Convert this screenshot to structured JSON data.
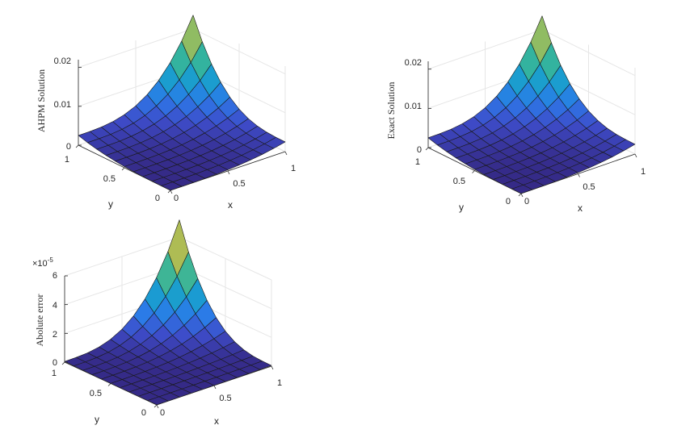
{
  "chart_data": [
    {
      "type": "surface",
      "zlabel": "AHPM Solution",
      "xlabel": "x",
      "ylabel": "y",
      "x_ticks": [
        "0",
        "0.5",
        "1"
      ],
      "y_ticks": [
        "0",
        "0.5",
        "1"
      ],
      "z_ticks": [
        "0",
        "0.01",
        "0.02"
      ],
      "z_exponent": "",
      "xlim": [
        0,
        1
      ],
      "ylim": [
        0,
        1
      ],
      "zlim": [
        0,
        0.022
      ],
      "grid": true,
      "colormap": "parula",
      "mesh_size": 10,
      "z_corners": {
        "x0y0": 0,
        "x1y0": 0.0025,
        "x0y1": 0.0025,
        "x1y1": 0.0235
      }
    },
    {
      "type": "surface",
      "zlabel": "Exact Solution",
      "xlabel": "x",
      "ylabel": "y",
      "x_ticks": [
        "0",
        "0.5",
        "1"
      ],
      "y_ticks": [
        "0",
        "0.5",
        "1"
      ],
      "z_ticks": [
        "0",
        "0.01",
        "0.02"
      ],
      "z_exponent": "",
      "xlim": [
        0,
        1
      ],
      "ylim": [
        0,
        1
      ],
      "zlim": [
        0,
        0.022
      ],
      "grid": true,
      "colormap": "parula",
      "mesh_size": 10,
      "z_corners": {
        "x0y0": 0,
        "x1y0": 0.0025,
        "x0y1": 0.0025,
        "x1y1": 0.0235
      }
    },
    {
      "type": "surface",
      "zlabel": "Abolute error",
      "xlabel": "x",
      "ylabel": "y",
      "x_ticks": [
        "0",
        "0.5",
        "1"
      ],
      "y_ticks": [
        "0",
        "0.5",
        "1"
      ],
      "z_ticks": [
        "0",
        "2",
        "4",
        "6"
      ],
      "z_exponent": "×10",
      "z_exponent_power": "-5",
      "xlim": [
        0,
        1
      ],
      "ylim": [
        0,
        1
      ],
      "zlim": [
        0,
        6
      ],
      "grid": true,
      "colormap": "parula",
      "mesh_size": 10,
      "z_corners": {
        "x0y0": 0,
        "x1y0": 0.05,
        "x0y1": 0.05,
        "x1y1": 7.2
      }
    }
  ],
  "colors": {
    "text": "#262626",
    "grid": "#e6e6e6",
    "mesh_edge": "#1a1a1a",
    "colormap_stops": [
      "#352a87",
      "#3e4cc9",
      "#2c79e8",
      "#1a98d7",
      "#1eb0b0",
      "#5bba7e",
      "#9fbd5b",
      "#d3b944"
    ]
  }
}
